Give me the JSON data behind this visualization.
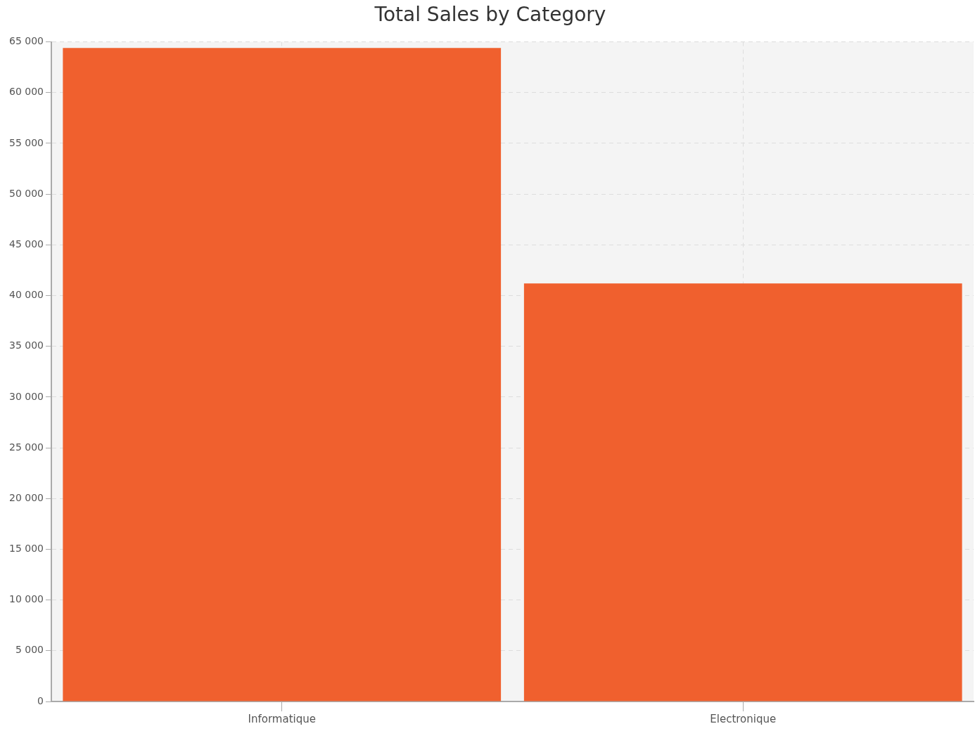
{
  "chart_data": {
    "type": "bar",
    "title": "Total Sales by Category",
    "categories": [
      "Informatique",
      "Electronique"
    ],
    "values": [
      64400,
      41200
    ],
    "color": "#f0602e",
    "ylim": [
      0,
      65000
    ],
    "yticks": [
      {
        "value": 0,
        "label": "0"
      },
      {
        "value": 5000,
        "label": "5 000"
      },
      {
        "value": 10000,
        "label": "10 000"
      },
      {
        "value": 15000,
        "label": "15 000"
      },
      {
        "value": 20000,
        "label": "20 000"
      },
      {
        "value": 25000,
        "label": "25 000"
      },
      {
        "value": 30000,
        "label": "30 000"
      },
      {
        "value": 35000,
        "label": "35 000"
      },
      {
        "value": 40000,
        "label": "40 000"
      },
      {
        "value": 45000,
        "label": "45 000"
      },
      {
        "value": 50000,
        "label": "50 000"
      },
      {
        "value": 55000,
        "label": "55 000"
      },
      {
        "value": 60000,
        "label": "60 000"
      },
      {
        "value": 65000,
        "label": "65 000"
      }
    ],
    "grid": true
  }
}
